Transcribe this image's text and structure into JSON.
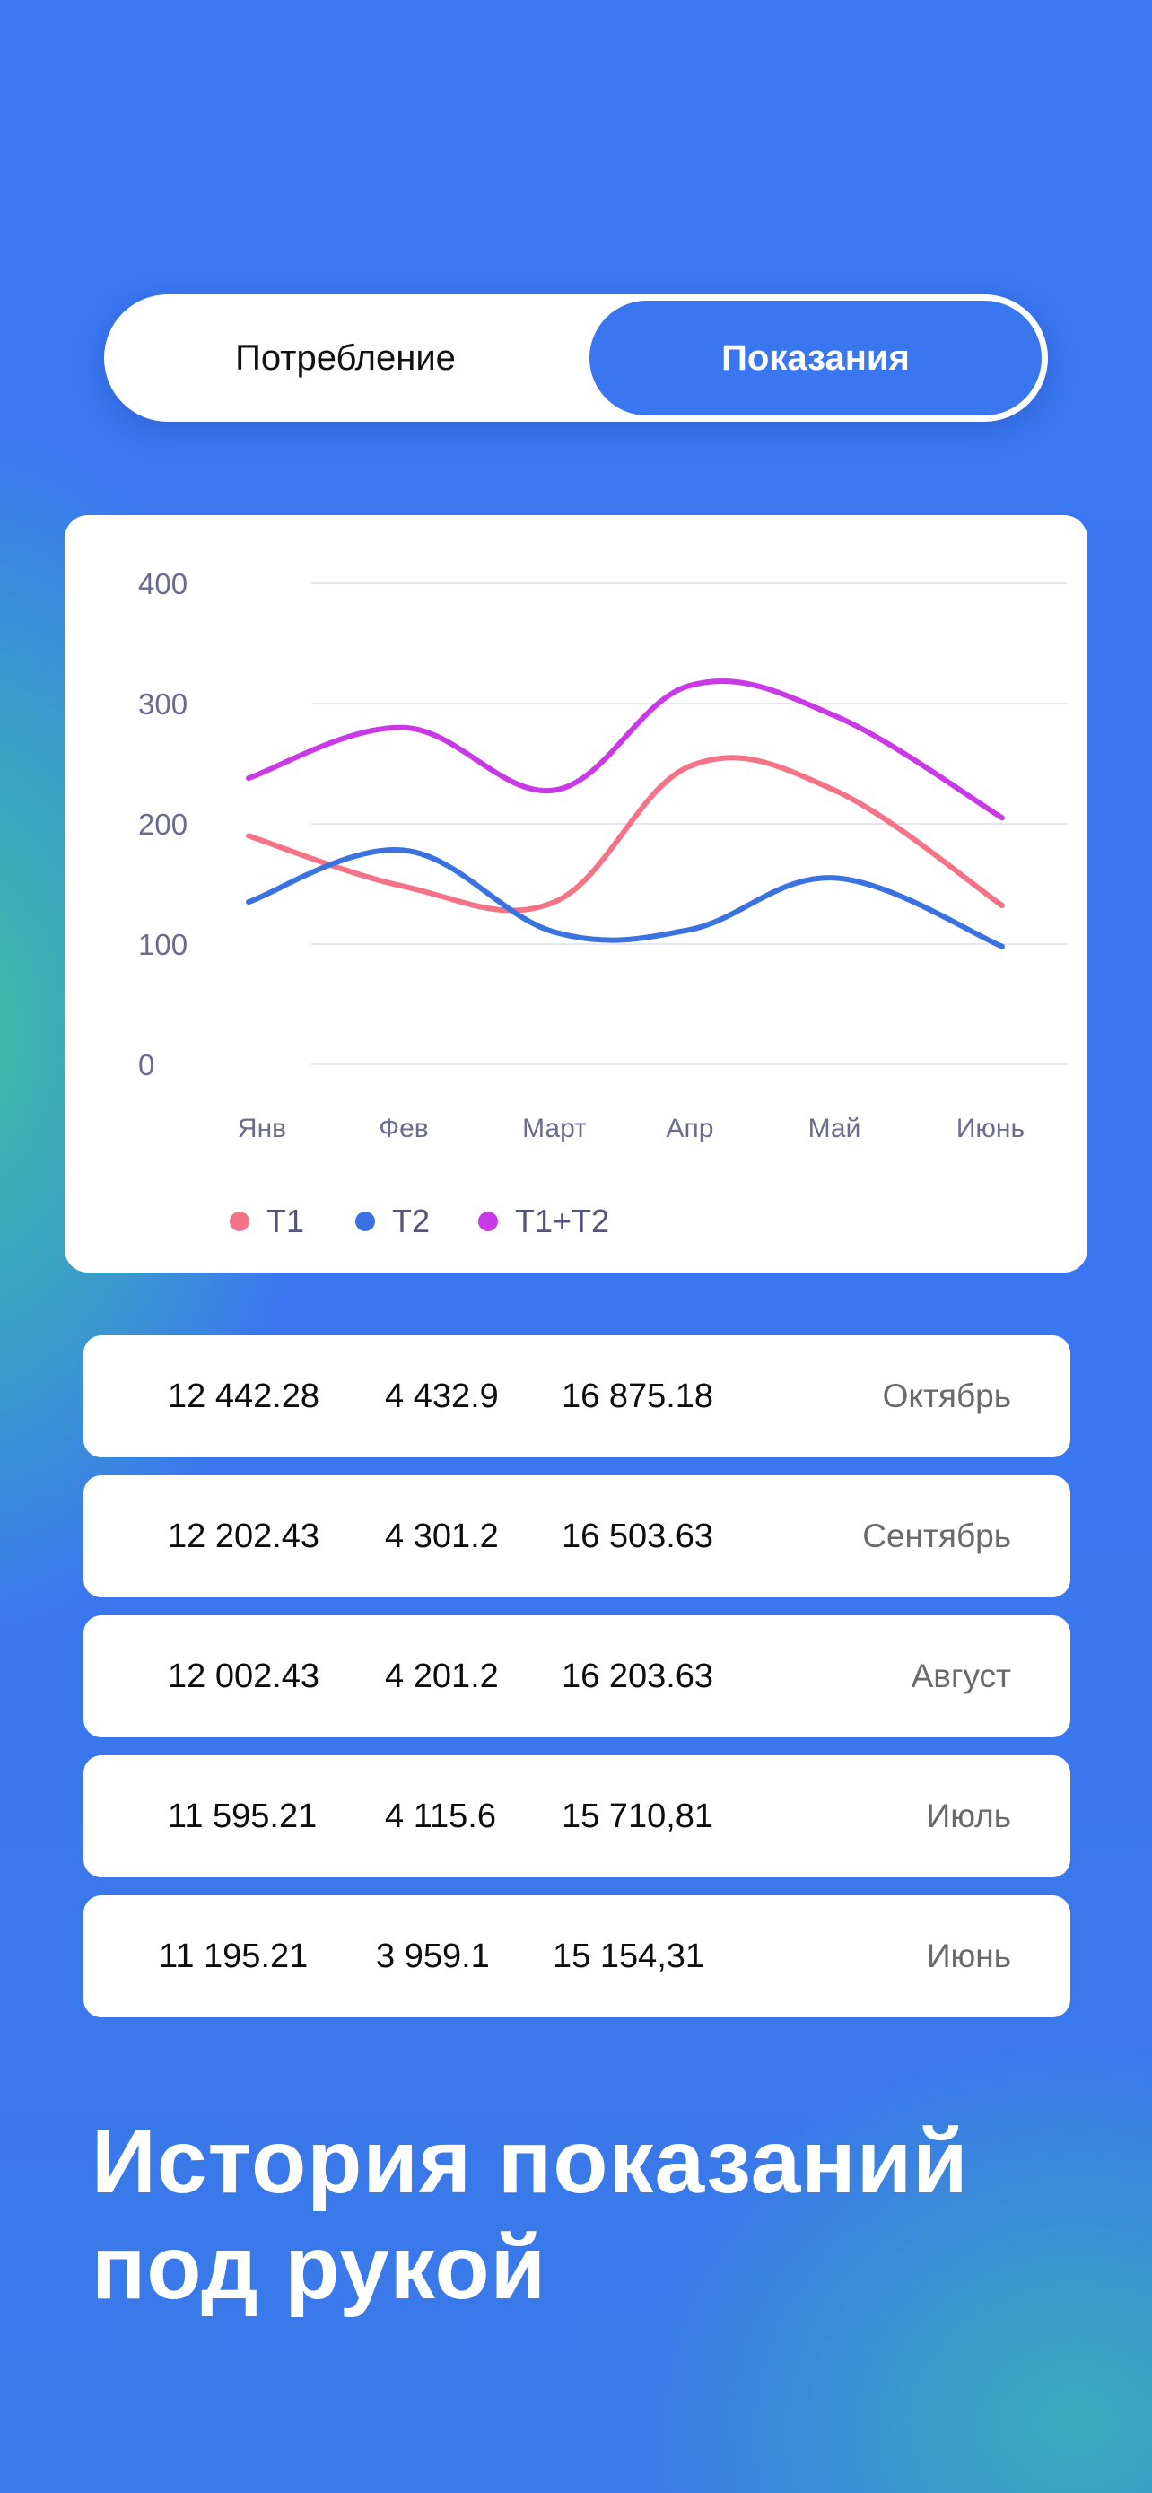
{
  "toggle": {
    "option_consumption": "Потребление",
    "option_readings": "Показания",
    "selected": "Показания"
  },
  "chart_data": {
    "type": "line",
    "categories": [
      "Янв",
      "Фев",
      "Март",
      "Апр",
      "Май",
      "Июнь"
    ],
    "y_ticks": [
      "400",
      "300",
      "200",
      "100",
      "0"
    ],
    "ylim": [
      0,
      400
    ],
    "grid": true,
    "legend_position": "bottom-left",
    "series": [
      {
        "name": "T1",
        "color": "#f47387",
        "values": [
          190,
          148,
          135,
          248,
          228,
          132
        ]
      },
      {
        "name": "T2",
        "color": "#3a72e2",
        "values": [
          135,
          178,
          110,
          112,
          155,
          98
        ]
      },
      {
        "name": "T1+T2",
        "color": "#c93ae6",
        "values": [
          238,
          280,
          228,
          315,
          290,
          205
        ]
      }
    ]
  },
  "readings": [
    {
      "t1": "12 442.28",
      "t2": "4 432.9",
      "total": "16 875.18",
      "month": "Октябрь"
    },
    {
      "t1": "12 202.43",
      "t2": "4 301.2",
      "total": "16 503.63",
      "month": "Сентябрь"
    },
    {
      "t1": "12 002.43",
      "t2": "4 201.2",
      "total": "16 203.63",
      "month": "Август"
    },
    {
      "t1": "11 595.21",
      "t2": "4 115.6",
      "total": "15 710,81",
      "month": "Июль"
    },
    {
      "t1": "11 195.21",
      "t2": "3 959.1",
      "total": "15 154,31",
      "month": "Июнь"
    }
  ],
  "headline": {
    "line1": "История показаний",
    "line2": "под рукой"
  }
}
